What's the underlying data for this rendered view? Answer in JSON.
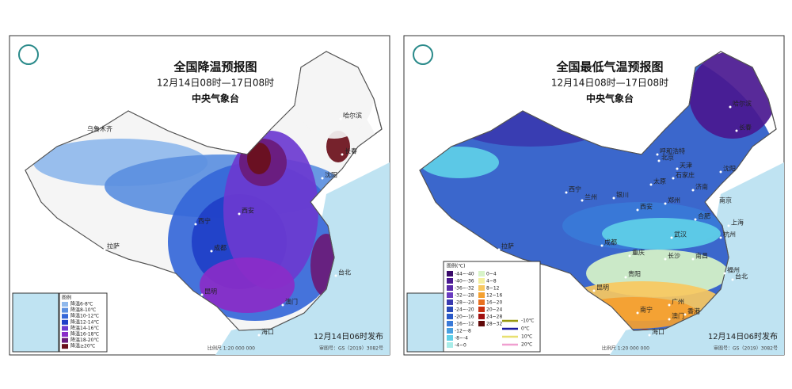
{
  "panels": [
    {
      "title": "全国降温预报图",
      "subtitle": "12月14日08时—17日08时",
      "agency": "中央气象台",
      "legend": {
        "title": "图例",
        "items": [
          {
            "label": "降温6-8℃",
            "color": "#8fb8ec"
          },
          {
            "label": "降温8-10℃",
            "color": "#5b8fe0"
          },
          {
            "label": "降温10-12℃",
            "color": "#3567d8"
          },
          {
            "label": "降温12-14℃",
            "color": "#1f3fc8"
          },
          {
            "label": "降温14-16℃",
            "color": "#6b3ad0"
          },
          {
            "label": "降温16-18℃",
            "color": "#8a2cc8"
          },
          {
            "label": "降温18-20℃",
            "color": "#6a1a78"
          },
          {
            "label": "降温≥20℃",
            "color": "#6a0f1a"
          }
        ]
      },
      "cities": [
        "乌鲁木齐",
        "哈尔滨",
        "长春",
        "沈阳",
        "西宁",
        "西安",
        "成都",
        "拉萨",
        "昆明",
        "台北",
        "澳门",
        "海口"
      ],
      "issued": "12月14日06时发布",
      "scale": "比例尺 1:20 000 000",
      "approval": "审图号：GS（2019）3082号"
    },
    {
      "title": "全国最低气温预报图",
      "subtitle": "12月14日08时—17日08时",
      "agency": "中央气象台",
      "legend": {
        "title": "图例(℃)",
        "items": [
          {
            "label": "-44~-40",
            "color": "#3a0a6a"
          },
          {
            "label": "-40~-36",
            "color": "#4a1890"
          },
          {
            "label": "-36~-32",
            "color": "#5a2aa8"
          },
          {
            "label": "-32~-28",
            "color": "#6a3cc0"
          },
          {
            "label": "-28~-24",
            "color": "#3a3ab0"
          },
          {
            "label": "-24~-20",
            "color": "#2a4ab8"
          },
          {
            "label": "-20~-16",
            "color": "#2a5ac8"
          },
          {
            "label": "-16~-12",
            "color": "#3a7ad8"
          },
          {
            "label": "-12~-8",
            "color": "#4aa0e0"
          },
          {
            "label": "-8~-4",
            "color": "#60d0e8"
          },
          {
            "label": "-4~0",
            "color": "#a8ece8"
          },
          {
            "label": "0~4",
            "color": "#d8f4c8"
          },
          {
            "label": "4~8",
            "color": "#f4f0a0"
          },
          {
            "label": "8~12",
            "color": "#f8c860"
          },
          {
            "label": "12~16",
            "color": "#f4a030"
          },
          {
            "label": "16~20",
            "color": "#e87020"
          },
          {
            "label": "20~24",
            "color": "#c83010"
          },
          {
            "label": "24~28",
            "color": "#a01010"
          },
          {
            "label": "28~32",
            "color": "#600808"
          }
        ],
        "lines": [
          {
            "label": "-10℃",
            "color": "#9a9a10"
          },
          {
            "label": "0℃",
            "color": "#1a1aa0"
          },
          {
            "label": "10℃",
            "color": "#e8e070"
          },
          {
            "label": "20℃",
            "color": "#f0a0d0"
          }
        ]
      },
      "cities": [
        "哈尔滨",
        "长春",
        "沈阳",
        "呼和浩特",
        "北京",
        "天津",
        "石家庄",
        "太原",
        "济南",
        "银川",
        "兰州",
        "西宁",
        "郑州",
        "西安",
        "南京",
        "合肥",
        "上海",
        "武汉",
        "杭州",
        "成都",
        "重庆",
        "长沙",
        "南昌",
        "贵阳",
        "福州",
        "台北",
        "昆明",
        "南宁",
        "广州",
        "香港",
        "澳门",
        "海口",
        "拉萨"
      ],
      "issued": "12月14日06时发布",
      "scale": "比例尺 1:20 000 000",
      "approval": "审图号：GS（2019）3082号"
    }
  ]
}
